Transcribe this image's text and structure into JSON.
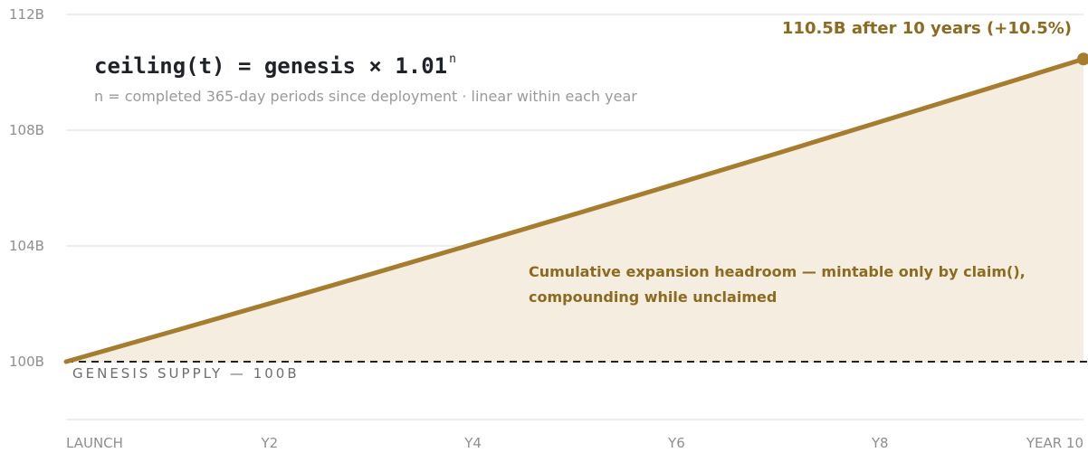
{
  "chart_data": {
    "type": "area",
    "x_labels": [
      "LAUNCH",
      "Y2",
      "Y4",
      "Y6",
      "Y8",
      "YEAR 10"
    ],
    "x_ticks": [
      0,
      2,
      4,
      6,
      8,
      10
    ],
    "y_ticks": [
      100,
      104,
      108,
      112
    ],
    "y_tick_labels": [
      "100B",
      "104B",
      "108B",
      "112B"
    ],
    "xlim": [
      0,
      10
    ],
    "ylim": [
      98,
      112
    ],
    "grid": "horizontal",
    "series": [
      {
        "x": [
          0,
          1,
          2,
          3,
          4,
          5,
          6,
          7,
          8,
          9,
          10
        ],
        "values": [
          100,
          101,
          102.01,
          103.03,
          104.06,
          105.1,
          106.15,
          107.21,
          108.29,
          109.37,
          110.46
        ],
        "color": "#a67c2e",
        "fill": "#f5ede0"
      }
    ],
    "reference_line": {
      "value": 100,
      "label": "GENESIS SUPPLY — 100B",
      "style": "dashed",
      "color": "#222222"
    },
    "endpoint_annotation": "110.5B after 10 years (+10.5%)",
    "area_annotation": [
      "Cumulative expansion headroom — mintable only by claim(),",
      "compounding while unclaimed"
    ],
    "formula": {
      "text": "ceiling(t) = genesis × 1.01",
      "superscript": "n"
    },
    "formula_note": "n = completed 365-day periods since deployment · linear within each year"
  }
}
